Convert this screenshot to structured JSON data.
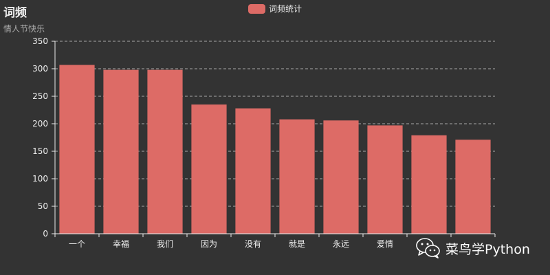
{
  "header": {
    "title": "词频",
    "subtitle": "情人节快乐"
  },
  "legend": {
    "label": "词频统计"
  },
  "watermark": {
    "text": "菜鸟学Python",
    "icon": "wechat-icon"
  },
  "colors": {
    "bar": "#dd6b66",
    "background": "#333333",
    "axis": "#eeeeee",
    "grid": "#aaaaaa"
  },
  "chart_data": {
    "type": "bar",
    "title": "词频",
    "subtitle": "情人节快乐",
    "categories": [
      "一个",
      "幸福",
      "我们",
      "因为",
      "没有",
      "就是",
      "永远",
      "爱情",
      "",
      ""
    ],
    "series": [
      {
        "name": "词频统计",
        "values": [
          307,
          298,
          298,
          235,
          228,
          208,
          206,
          197,
          179,
          171
        ]
      }
    ],
    "ylim": [
      0,
      350
    ],
    "yticks": [
      0,
      50,
      100,
      150,
      200,
      250,
      300,
      350
    ],
    "grid": true,
    "legend_position": "top-center"
  }
}
